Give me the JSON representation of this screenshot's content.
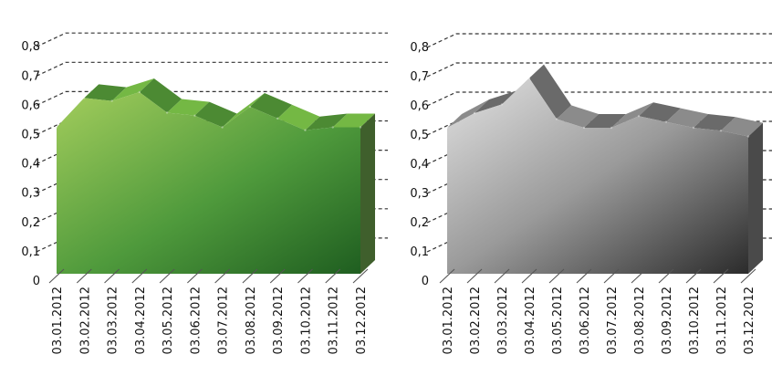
{
  "colors": {
    "green_light": "#a3cd5c",
    "green_dark": "#1f5e20",
    "gray_light": "#e2e2e2",
    "gray_dark": "#2b2b2b"
  },
  "chart_data": [
    {
      "type": "area",
      "style": "3d",
      "theme": "green",
      "categories": [
        "03.01.2012",
        "03.02.2012",
        "03.03.2012",
        "03.04.2012",
        "03.05.2012",
        "03.06.2012",
        "03.07.2012",
        "03.08.2012",
        "03.09.2012",
        "03.10.2012",
        "03.11.2012",
        "03.12.2012"
      ],
      "values": [
        0.5,
        0.6,
        0.59,
        0.62,
        0.55,
        0.54,
        0.5,
        0.57,
        0.53,
        0.49,
        0.5,
        0.5
      ],
      "ylim": [
        0,
        0.8
      ],
      "yticks": [
        "0",
        "0,1",
        "0,2",
        "0,3",
        "0,4",
        "0,5",
        "0,6",
        "0,7",
        "0,8"
      ],
      "grid": true
    },
    {
      "type": "area",
      "style": "3d",
      "theme": "gray",
      "categories": [
        "03.01.2012",
        "03.02.2012",
        "03.03.2012",
        "03.04.2012",
        "03.05.2012",
        "03.06.2012",
        "03.07.2012",
        "03.08.2012",
        "03.09.2012",
        "03.10.2012",
        "03.11.2012",
        "03.12.2012"
      ],
      "values": [
        0.5,
        0.55,
        0.58,
        0.67,
        0.53,
        0.5,
        0.5,
        0.54,
        0.52,
        0.5,
        0.49,
        0.47
      ],
      "ylim": [
        0,
        0.8
      ],
      "yticks": [
        "0",
        "0,1",
        "0,2",
        "0,3",
        "0,4",
        "0,5",
        "0,6",
        "0,7",
        "0,8"
      ],
      "grid": true
    }
  ]
}
